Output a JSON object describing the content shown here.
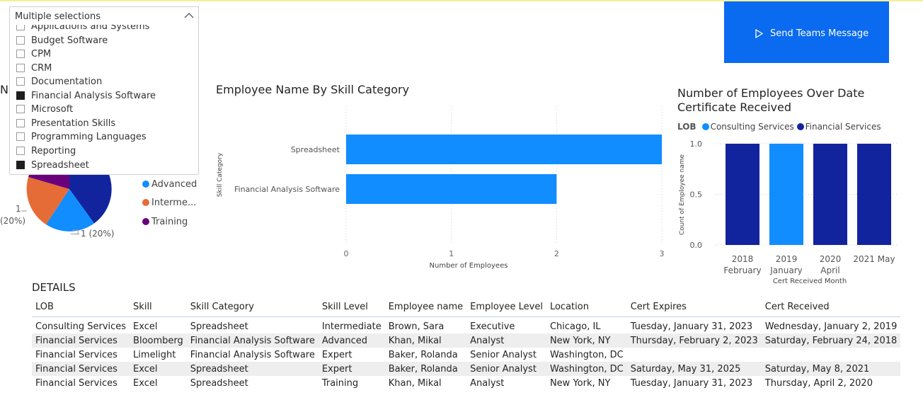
{
  "slicer": {
    "header": "Multiple selections",
    "items": [
      {
        "label": "Applications and Systems",
        "checked": false
      },
      {
        "label": "Budget Software",
        "checked": false
      },
      {
        "label": "CPM",
        "checked": false
      },
      {
        "label": "CRM",
        "checked": false
      },
      {
        "label": "Documentation",
        "checked": false
      },
      {
        "label": "Financial Analysis Software",
        "checked": true
      },
      {
        "label": "Microsoft",
        "checked": false
      },
      {
        "label": "Presentation Skills",
        "checked": false
      },
      {
        "label": "Programming Languages",
        "checked": false
      },
      {
        "label": "Reporting",
        "checked": false
      },
      {
        "label": "Spreadsheet",
        "checked": true
      }
    ]
  },
  "teams_button": {
    "label": "Send Teams Message",
    "color": "#0a6af0"
  },
  "pie_visual": {
    "partial_title": "Nu",
    "legend": [
      {
        "label": "Advanced",
        "color": "#118dff"
      },
      {
        "label": "Interme...",
        "color": "#e66c37"
      },
      {
        "label": "Training",
        "color": "#6b007b"
      }
    ],
    "labels": {
      "left_count": "1",
      "left_pct": "(20%)",
      "bottom": "1 (20%)"
    },
    "colors": {
      "navy": "#12239e",
      "blue": "#118dff",
      "orange": "#e66c37",
      "purple": "#6b007b"
    }
  },
  "bar_chart": {
    "title": "Employee Name By Skill Category",
    "chart_data": {
      "type": "bar",
      "orientation": "horizontal",
      "categories": [
        "Spreadsheet",
        "Financial Analysis Software"
      ],
      "values": [
        3,
        2
      ],
      "xlabel": "Number of Employees",
      "ylabel": "Skill Category",
      "xlim": [
        0,
        3
      ],
      "xticks": [
        "0",
        "1",
        "2",
        "3"
      ],
      "color": "#118dff",
      "grid": true
    }
  },
  "column_chart": {
    "title_line1": "Number of Employees Over Date",
    "title_line2": "Certificate Received",
    "legend_title": "LOB",
    "chart_data": {
      "type": "bar",
      "categories": [
        {
          "top": "2018",
          "bottom": "February"
        },
        {
          "top": "2019",
          "bottom": "January"
        },
        {
          "top": "2020",
          "bottom": "April"
        },
        {
          "top": "2021 May",
          "bottom": ""
        }
      ],
      "series": [
        {
          "name": "Consulting Services",
          "color": "#118dff",
          "values": [
            0,
            1,
            0,
            0
          ]
        },
        {
          "name": "Financial Services",
          "color": "#12239e",
          "values": [
            1,
            0,
            1,
            1
          ]
        }
      ],
      "xlabel": "Cert Received Month",
      "ylabel": "Count of Employee name",
      "ylim": [
        0,
        1
      ],
      "yticks": [
        "0.0",
        "0.5",
        "1.0"
      ],
      "grid": true,
      "legend_position": "top-left"
    }
  },
  "details": {
    "title": "DETAILS",
    "columns": [
      "LOB",
      "Skill",
      "Skill Category",
      "Skill Level",
      "Employee name",
      "Employee Level",
      "Location",
      "Cert Expires",
      "Cert Received"
    ],
    "rows": [
      [
        "Consulting Services",
        "Excel",
        "Spreadsheet",
        "Intermediate",
        "Brown, Sara",
        "Executive",
        "Chicago, IL",
        "Tuesday, January 31, 2023",
        "Wednesday, January 2, 2019"
      ],
      [
        "Financial Services",
        "Bloomberg",
        "Financial Analysis Software",
        "Advanced",
        "Khan, Mikal",
        "Analyst",
        "New York, NY",
        "Thursday, February 2, 2023",
        "Saturday, February 24, 2018"
      ],
      [
        "Financial Services",
        "Limelight",
        "Financial Analysis Software",
        "Expert",
        "Baker, Rolanda",
        "Senior Analyst",
        "Washington, DC",
        "",
        ""
      ],
      [
        "Financial Services",
        "Excel",
        "Spreadsheet",
        "Expert",
        "Baker, Rolanda",
        "Senior Analyst",
        "Washington, DC",
        "Saturday, May 31, 2025",
        "Saturday, May 8, 2021"
      ],
      [
        "Financial Services",
        "Excel",
        "Spreadsheet",
        "Training",
        "Khan, Mikal",
        "Analyst",
        "New York, NY",
        "Tuesday, January 31, 2023",
        "Thursday, April 2, 2020"
      ]
    ]
  }
}
